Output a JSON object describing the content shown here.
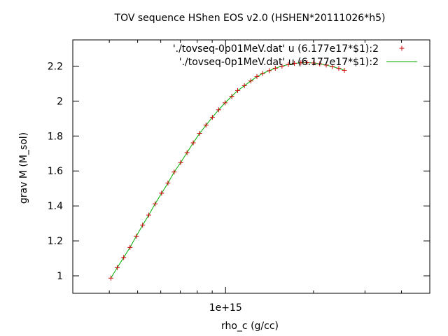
{
  "chart_data": {
    "type": "scatter",
    "title": "TOV sequence HShen EOS v2.0 (HSHEN*20111026*h5)",
    "xlabel": "rho_c (g/cc)",
    "ylabel": "grav M (M_sol)",
    "x_scale": "log",
    "xlim": [
      300000000000000.0,
      5000000000000000.0
    ],
    "ylim": [
      0.9,
      2.35
    ],
    "x_ticks": [
      {
        "value": 1000000000000000.0,
        "label": "1e+15"
      }
    ],
    "y_ticks": [
      {
        "value": 1.0,
        "label": "1"
      },
      {
        "value": 1.2,
        "label": "1.2"
      },
      {
        "value": 1.4,
        "label": "1.4"
      },
      {
        "value": 1.6,
        "label": "1.6"
      },
      {
        "value": 1.8,
        "label": "1.8"
      },
      {
        "value": 2.0,
        "label": "2"
      },
      {
        "value": 2.2,
        "label": "2.2"
      }
    ],
    "grid": false,
    "legend_position": "top-right",
    "series": [
      {
        "name": "'./tovseq-0p01MeV.dat' u (6.177e17*$1):2",
        "style": "points",
        "marker": "+",
        "color": "#cc0000",
        "x": [
          405000000000000.0,
          426000000000000.0,
          448000000000000.0,
          471000000000000.0,
          495000000000000.0,
          520000000000000.0,
          546000000000000.0,
          574000000000000.0,
          604000000000000.0,
          635000000000000.0,
          667000000000000.0,
          702000000000000.0,
          738000000000000.0,
          775000000000000.0,
          815000000000000.0,
          857000000000000.0,
          901000000000000.0,
          947000000000000.0,
          996000000000000.0,
          1050000000000000.0,
          1100000000000000.0,
          1160000000000000.0,
          1220000000000000.0,
          1280000000000000.0,
          1340000000000000.0,
          1410000000000000.0,
          1480000000000000.0,
          1560000000000000.0,
          1640000000000000.0,
          1720000000000000.0,
          1810000000000000.0,
          1900000000000000.0,
          2000000000000000.0,
          2100000000000000.0,
          2210000000000000.0,
          2320000000000000.0,
          2440000000000000.0,
          2550000000000000.0
        ],
        "y": [
          0.987,
          1.047,
          1.105,
          1.163,
          1.227,
          1.29,
          1.348,
          1.412,
          1.473,
          1.531,
          1.594,
          1.648,
          1.705,
          1.761,
          1.815,
          1.862,
          1.907,
          1.95,
          1.99,
          2.027,
          2.06,
          2.088,
          2.115,
          2.14,
          2.158,
          2.174,
          2.188,
          2.2,
          2.209,
          2.216,
          2.219,
          2.22,
          2.218,
          2.213,
          2.206,
          2.197,
          2.187,
          2.176
        ]
      },
      {
        "name": "'./tovseq-0p1MeV.dat' u (6.177e17*$1):2",
        "style": "line",
        "color": "#00aa00",
        "x": [
          405000000000000.0,
          426000000000000.0,
          448000000000000.0,
          471000000000000.0,
          495000000000000.0,
          520000000000000.0,
          546000000000000.0,
          574000000000000.0,
          604000000000000.0,
          635000000000000.0,
          667000000000000.0,
          702000000000000.0,
          738000000000000.0,
          775000000000000.0,
          815000000000000.0,
          857000000000000.0,
          901000000000000.0,
          947000000000000.0,
          996000000000000.0,
          1050000000000000.0,
          1100000000000000.0,
          1160000000000000.0,
          1220000000000000.0,
          1280000000000000.0,
          1340000000000000.0,
          1410000000000000.0,
          1480000000000000.0,
          1560000000000000.0,
          1640000000000000.0,
          1720000000000000.0,
          1810000000000000.0,
          1900000000000000.0,
          2000000000000000.0,
          2100000000000000.0,
          2210000000000000.0,
          2320000000000000.0,
          2440000000000000.0,
          2550000000000000.0
        ],
        "y": [
          0.987,
          1.047,
          1.105,
          1.163,
          1.227,
          1.29,
          1.348,
          1.412,
          1.473,
          1.531,
          1.594,
          1.648,
          1.705,
          1.761,
          1.815,
          1.862,
          1.907,
          1.95,
          1.99,
          2.027,
          2.06,
          2.088,
          2.115,
          2.14,
          2.158,
          2.174,
          2.188,
          2.2,
          2.209,
          2.216,
          2.219,
          2.22,
          2.218,
          2.213,
          2.206,
          2.197,
          2.187,
          2.176
        ]
      }
    ]
  }
}
